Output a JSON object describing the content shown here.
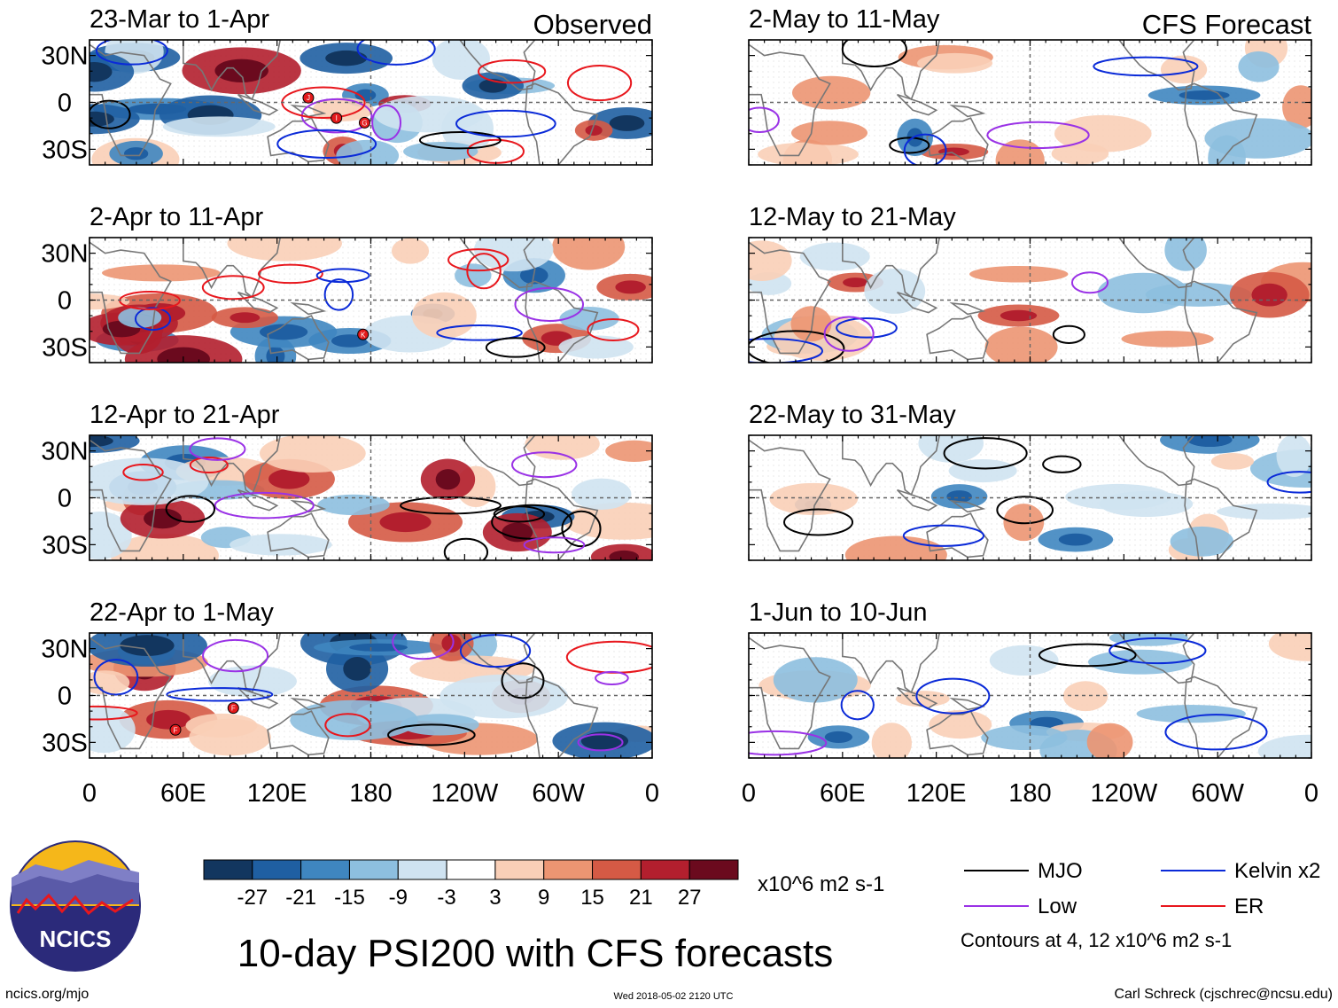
{
  "figure": {
    "title": "10-day PSI200 with CFS forecasts",
    "website": "ncics.org/mjo",
    "timestamp": "Wed 2018-05-02 2120 UTC",
    "author": "Carl Schreck (cjschrec@ncsu.edu)",
    "logo_text": "NCICS",
    "left_column_label": "Observed",
    "right_column_label": "CFS Forecast"
  },
  "chart_data": {
    "type": "heatmap",
    "variable": "200-hPa streamfunction anomaly (PSI200)",
    "panels": [
      {
        "label": "23-Mar to 1-Apr",
        "column": "Observed",
        "storm_symbols": [
          "J",
          "I",
          "G"
        ]
      },
      {
        "label": "2-Apr to 11-Apr",
        "column": "Observed",
        "storm_symbols": [
          "K"
        ]
      },
      {
        "label": "12-Apr to 21-Apr",
        "column": "Observed",
        "storm_symbols": []
      },
      {
        "label": "22-Apr to 1-May",
        "column": "Observed",
        "storm_symbols": [
          "F",
          "F"
        ]
      },
      {
        "label": "2-May to 11-May",
        "column": "CFS Forecast",
        "storm_symbols": []
      },
      {
        "label": "12-May to 21-May",
        "column": "CFS Forecast",
        "storm_symbols": []
      },
      {
        "label": "22-May to 31-May",
        "column": "CFS Forecast",
        "storm_symbols": []
      },
      {
        "label": "1-Jun to 10-Jun",
        "column": "CFS Forecast",
        "storm_symbols": []
      }
    ],
    "y_ticks": [
      "30N",
      "0",
      "30S"
    ],
    "y_tick_values": [
      30,
      0,
      -30
    ],
    "ylim": [
      -40,
      40
    ],
    "x_ticks": [
      "0",
      "60E",
      "120E",
      "180",
      "120W",
      "60W",
      "0"
    ],
    "x_tick_values": [
      0,
      60,
      120,
      180,
      240,
      300,
      360
    ],
    "xlim": [
      0,
      360
    ],
    "colorbar": {
      "levels": [
        "-27",
        "-21",
        "-15",
        "-9",
        "-3",
        "3",
        "9",
        "15",
        "21",
        "27"
      ],
      "colors": [
        "#12365f",
        "#1f5fa2",
        "#3f86c0",
        "#8dbfdf",
        "#cfe3f1",
        "#ffffff",
        "#f9cfb7",
        "#ec9572",
        "#d55a45",
        "#b31f2e",
        "#6b0a1e"
      ],
      "units": "x10^6 m2 s-1"
    },
    "contour_legend": [
      {
        "label": "MJO",
        "color": "#000000"
      },
      {
        "label": "Kelvin x2",
        "color": "#0a2ad8"
      },
      {
        "label": "Low",
        "color": "#9a32e6"
      },
      {
        "label": "ER",
        "color": "#e8171d"
      }
    ],
    "contour_note": "Contours at 4, 12 x10^6 m2 s-1"
  }
}
